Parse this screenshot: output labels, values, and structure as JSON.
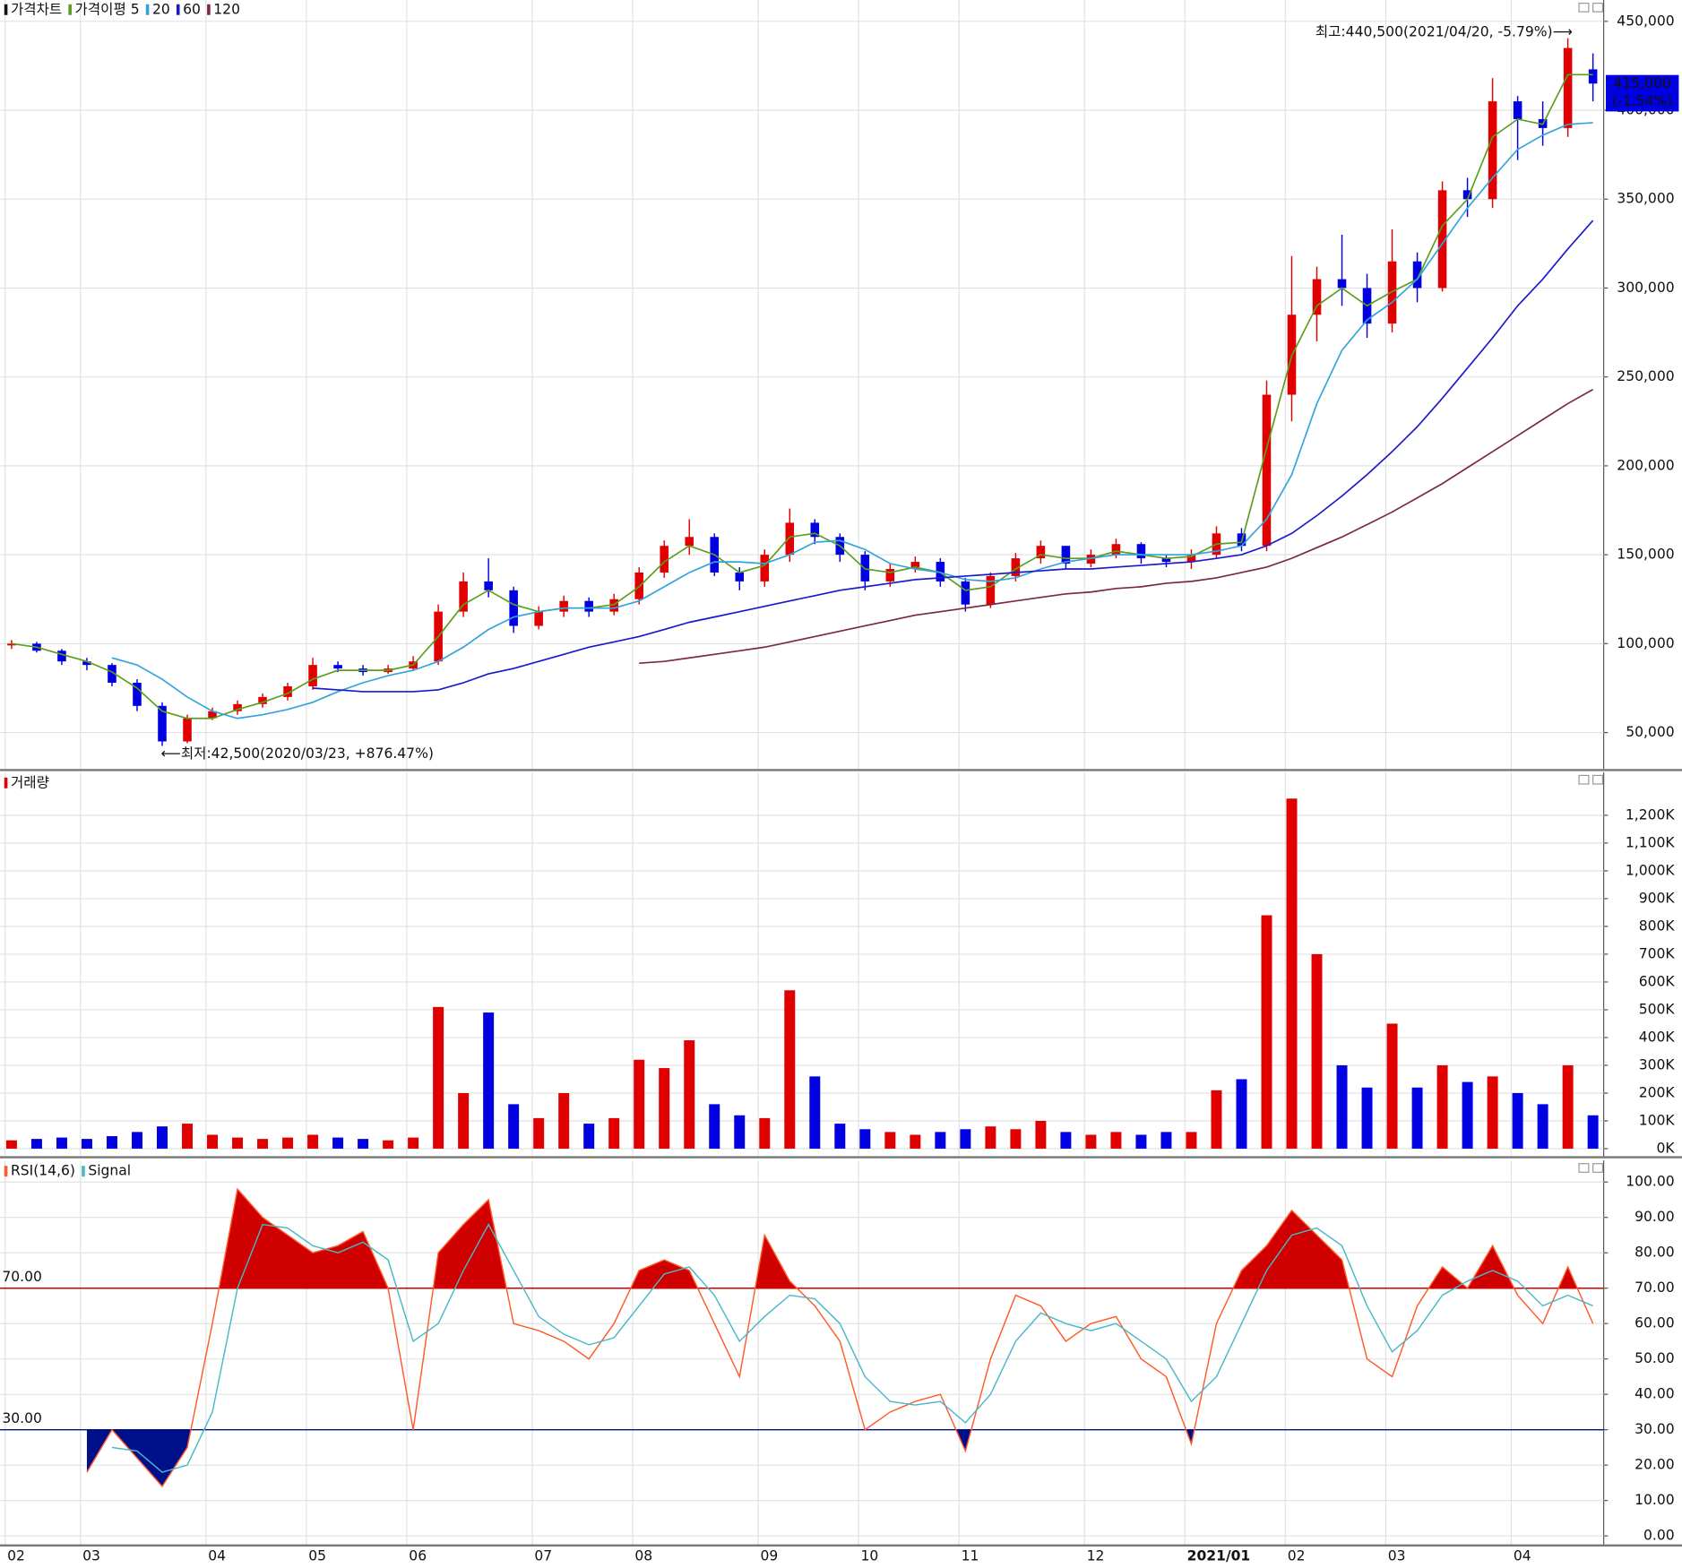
{
  "chart_data": [
    {
      "type": "candlestick",
      "title": "가격차트",
      "open": [
        99000,
        100000,
        96000,
        90000,
        88000,
        78000,
        65000,
        45000,
        58000,
        62000,
        66000,
        70000,
        76000,
        88000,
        86000,
        84000,
        86000,
        90000,
        118000,
        135000,
        130000,
        110000,
        118000,
        124000,
        118000,
        125000,
        140000,
        155000,
        160000,
        140000,
        135000,
        150000,
        168000,
        160000,
        150000,
        135000,
        142000,
        146000,
        135000,
        122000,
        138000,
        148000,
        155000,
        145000,
        150000,
        156000,
        148000,
        146000,
        150000,
        162000,
        155000,
        240000,
        285000,
        305000,
        300000,
        280000,
        315000,
        300000,
        355000,
        350000,
        405000,
        395000,
        390000,
        423000
      ],
      "high": [
        102000,
        101000,
        97000,
        92000,
        89000,
        80000,
        67000,
        60000,
        64000,
        68000,
        72000,
        78000,
        92000,
        90000,
        88000,
        88000,
        93000,
        122000,
        140000,
        148000,
        132000,
        121000,
        127000,
        126000,
        128000,
        143000,
        158000,
        170000,
        162000,
        143000,
        153000,
        176000,
        170000,
        162000,
        152000,
        145000,
        149000,
        148000,
        137000,
        140000,
        151000,
        158000,
        155000,
        153000,
        159000,
        157000,
        150000,
        153000,
        166000,
        165000,
        248000,
        318000,
        312000,
        330000,
        308000,
        333000,
        320000,
        360000,
        362000,
        418000,
        408000,
        405000,
        440500,
        432000
      ],
      "low": [
        97000,
        95000,
        88000,
        85000,
        76000,
        62000,
        42500,
        44000,
        57000,
        60000,
        64000,
        68000,
        74000,
        84000,
        82000,
        83000,
        85000,
        88000,
        115000,
        126000,
        106000,
        108000,
        115000,
        115000,
        116000,
        122000,
        137000,
        150000,
        138000,
        130000,
        132000,
        146000,
        156000,
        146000,
        130000,
        132000,
        140000,
        132000,
        118000,
        120000,
        135000,
        145000,
        142000,
        143000,
        148000,
        145000,
        143000,
        142000,
        148000,
        152000,
        152000,
        225000,
        270000,
        290000,
        272000,
        275000,
        292000,
        298000,
        340000,
        345000,
        372000,
        380000,
        385000,
        405000
      ],
      "close": [
        100000,
        96000,
        90000,
        88000,
        78000,
        65000,
        45000,
        58000,
        62000,
        66000,
        70000,
        76000,
        88000,
        86000,
        84000,
        86000,
        90000,
        118000,
        135000,
        130000,
        110000,
        118000,
        124000,
        118000,
        125000,
        140000,
        155000,
        160000,
        140000,
        135000,
        150000,
        168000,
        160000,
        150000,
        135000,
        142000,
        146000,
        135000,
        122000,
        138000,
        148000,
        155000,
        145000,
        150000,
        156000,
        148000,
        146000,
        150000,
        162000,
        155000,
        240000,
        285000,
        305000,
        300000,
        280000,
        315000,
        300000,
        355000,
        350000,
        405000,
        395000,
        390000,
        435000,
        415000
      ],
      "up_color": "#e00000",
      "down_color": "#0000e0",
      "series": [
        {
          "name": "가격이평 5",
          "color": "#5a9e1e",
          "values": [
            100000,
            98000,
            94000,
            90000,
            84000,
            75000,
            62000,
            58000,
            58000,
            63000,
            67000,
            72000,
            80000,
            85000,
            85000,
            85000,
            88000,
            104000,
            122000,
            130000,
            122000,
            118000,
            120000,
            120000,
            122000,
            132000,
            146000,
            155000,
            150000,
            140000,
            144000,
            160000,
            162000,
            155000,
            142000,
            140000,
            143000,
            140000,
            130000,
            132000,
            142000,
            150000,
            148000,
            148000,
            152000,
            150000,
            148000,
            149000,
            156000,
            157000,
            210000,
            262000,
            290000,
            300000,
            290000,
            298000,
            305000,
            335000,
            350000,
            385000,
            395000,
            392000,
            420000,
            420000
          ]
        },
        {
          "name": "20",
          "color": "#33a3dc",
          "values": [
            null,
            null,
            null,
            null,
            92000,
            88000,
            80000,
            70000,
            62000,
            58000,
            60000,
            63000,
            67000,
            73000,
            78000,
            82000,
            85000,
            90000,
            98000,
            108000,
            115000,
            118000,
            120000,
            120000,
            120000,
            124000,
            132000,
            140000,
            146000,
            146000,
            145000,
            150000,
            157000,
            158000,
            153000,
            145000,
            142000,
            140000,
            136000,
            135000,
            137000,
            142000,
            146000,
            148000,
            150000,
            150000,
            150000,
            150000,
            152000,
            155000,
            170000,
            195000,
            235000,
            265000,
            282000,
            292000,
            305000,
            325000,
            345000,
            362000,
            378000,
            386000,
            392000,
            393000
          ]
        },
        {
          "name": "60",
          "color": "#1a1acc",
          "values": [
            null,
            null,
            null,
            null,
            null,
            null,
            null,
            null,
            null,
            null,
            null,
            null,
            75000,
            74000,
            73000,
            73000,
            73000,
            74000,
            78000,
            83000,
            86000,
            90000,
            94000,
            98000,
            101000,
            104000,
            108000,
            112000,
            115000,
            118000,
            121000,
            124000,
            127000,
            130000,
            132000,
            134000,
            136000,
            137000,
            138000,
            139000,
            140000,
            141000,
            142000,
            142000,
            143000,
            144000,
            145000,
            146000,
            148000,
            150000,
            155000,
            162000,
            172000,
            183000,
            195000,
            208000,
            222000,
            238000,
            255000,
            272000,
            290000,
            305000,
            322000,
            338000
          ]
        },
        {
          "name": "120",
          "color": "#7a2848",
          "values": [
            null,
            null,
            null,
            null,
            null,
            null,
            null,
            null,
            null,
            null,
            null,
            null,
            null,
            null,
            null,
            null,
            null,
            null,
            null,
            null,
            null,
            null,
            null,
            null,
            null,
            89000,
            90000,
            92000,
            94000,
            96000,
            98000,
            101000,
            104000,
            107000,
            110000,
            113000,
            116000,
            118000,
            120000,
            122000,
            124000,
            126000,
            128000,
            129000,
            131000,
            132000,
            134000,
            135000,
            137000,
            140000,
            143000,
            148000,
            154000,
            160000,
            167000,
            174000,
            182000,
            190000,
            199000,
            208000,
            217000,
            226000,
            235000,
            243000
          ]
        }
      ],
      "annotations": {
        "high": "최고:440,500(2021/04/20, -5.79%)⟶",
        "low": "⟵최저:42,500(2020/03/23, +876.47%)"
      },
      "last_price": {
        "value": 415000,
        "label": "415,000",
        "change": "(-1.54%)"
      },
      "ylim": [
        29500,
        462000
      ],
      "yticks": [
        {
          "value": 50000,
          "label": "50,000"
        },
        {
          "value": 100000,
          "label": "100,000"
        },
        {
          "value": 150000,
          "label": "150,000"
        },
        {
          "value": 200000,
          "label": "200,000"
        },
        {
          "value": 250000,
          "label": "250,000"
        },
        {
          "value": 300000,
          "label": "300,000"
        },
        {
          "value": 350000,
          "label": "350,000"
        },
        {
          "value": 400000,
          "label": "400,000"
        },
        {
          "value": 450000,
          "label": "450,000"
        }
      ],
      "grid": true
    },
    {
      "type": "volume_bar",
      "title": "거래량",
      "color": "#e00000",
      "values": [
        30000,
        35000,
        40000,
        35000,
        45000,
        60000,
        80000,
        90000,
        50000,
        40000,
        35000,
        40000,
        50000,
        40000,
        35000,
        30000,
        40000,
        510000,
        200000,
        490000,
        160000,
        110000,
        200000,
        90000,
        110000,
        320000,
        290000,
        390000,
        160000,
        120000,
        110000,
        570000,
        260000,
        90000,
        70000,
        60000,
        50000,
        60000,
        70000,
        80000,
        70000,
        100000,
        60000,
        50000,
        60000,
        50000,
        60000,
        60000,
        210000,
        250000,
        840000,
        1260000,
        700000,
        300000,
        220000,
        450000,
        220000,
        300000,
        240000,
        260000,
        200000,
        160000,
        300000,
        120000
      ],
      "ylim": [
        -27000,
        1355000
      ],
      "yticks": [
        {
          "value": 0,
          "label": "0K"
        },
        {
          "value": 100000,
          "label": "100K"
        },
        {
          "value": 200000,
          "label": "200K"
        },
        {
          "value": 300000,
          "label": "300K"
        },
        {
          "value": 400000,
          "label": "400K"
        },
        {
          "value": 500000,
          "label": "500K"
        },
        {
          "value": 600000,
          "label": "600K"
        },
        {
          "value": 700000,
          "label": "700K"
        },
        {
          "value": 800000,
          "label": "800K"
        },
        {
          "value": 900000,
          "label": "900K"
        },
        {
          "value": 1000000,
          "label": "1,000K"
        },
        {
          "value": 1100000,
          "label": "1,100K"
        },
        {
          "value": 1200000,
          "label": "1,200K"
        }
      ],
      "grid": true
    },
    {
      "type": "rsi",
      "categories": [
        "02",
        null,
        null,
        "03",
        null,
        null,
        null,
        null,
        "04",
        null,
        null,
        null,
        "05",
        null,
        null,
        null,
        "06",
        null,
        null,
        null,
        null,
        "07",
        null,
        null,
        null,
        "08",
        null,
        null,
        null,
        null,
        "09",
        null,
        null,
        null,
        "10",
        null,
        null,
        null,
        "11",
        null,
        null,
        null,
        null,
        "12",
        null,
        null,
        null,
        "2021/01",
        null,
        null,
        null,
        "02",
        null,
        null,
        null,
        "03",
        null,
        null,
        null,
        null,
        "04",
        null,
        null,
        null
      ],
      "series": [
        {
          "name": "RSI(14,6)",
          "color": "#ff5a2a",
          "values": [
            null,
            null,
            null,
            18,
            30,
            22,
            14,
            25,
            60,
            98,
            90,
            85,
            80,
            82,
            86,
            70,
            30,
            80,
            88,
            95,
            60,
            58,
            55,
            50,
            60,
            75,
            78,
            75,
            60,
            45,
            85,
            72,
            65,
            55,
            30,
            35,
            38,
            40,
            24,
            50,
            68,
            65,
            55,
            60,
            62,
            50,
            45,
            26,
            60,
            75,
            82,
            92,
            85,
            78,
            50,
            45,
            65,
            76,
            70,
            82,
            68,
            60,
            76,
            60
          ]
        },
        {
          "name": "Signal",
          "color": "#47b8c8",
          "values": [
            null,
            null,
            null,
            null,
            25,
            24,
            18,
            20,
            35,
            70,
            88,
            87,
            82,
            80,
            83,
            78,
            55,
            60,
            75,
            88,
            75,
            62,
            57,
            54,
            56,
            65,
            74,
            76,
            68,
            55,
            62,
            68,
            67,
            60,
            45,
            38,
            37,
            38,
            32,
            40,
            55,
            63,
            60,
            58,
            60,
            55,
            50,
            38,
            45,
            60,
            75,
            85,
            87,
            82,
            65,
            52,
            58,
            68,
            72,
            75,
            72,
            65,
            68,
            65
          ]
        }
      ],
      "levels": [
        {
          "value": 70,
          "label": "70.00",
          "color": "#d00000"
        },
        {
          "value": 30,
          "label": "30.00",
          "color": "#00108a"
        }
      ],
      "ylim": [
        -2.4,
        106.1
      ],
      "yticks": [
        {
          "value": 0,
          "label": "0.00"
        },
        {
          "value": 10,
          "label": "10.00"
        },
        {
          "value": 20,
          "label": "20.00"
        },
        {
          "value": 30,
          "label": "30.00"
        },
        {
          "value": 40,
          "label": "40.00"
        },
        {
          "value": 50,
          "label": "50.00"
        },
        {
          "value": 60,
          "label": "60.00"
        },
        {
          "value": 70,
          "label": "70.00"
        },
        {
          "value": 80,
          "label": "80.00"
        },
        {
          "value": 90,
          "label": "90.00"
        },
        {
          "value": 100,
          "label": "100.00"
        }
      ],
      "grid": true
    }
  ]
}
